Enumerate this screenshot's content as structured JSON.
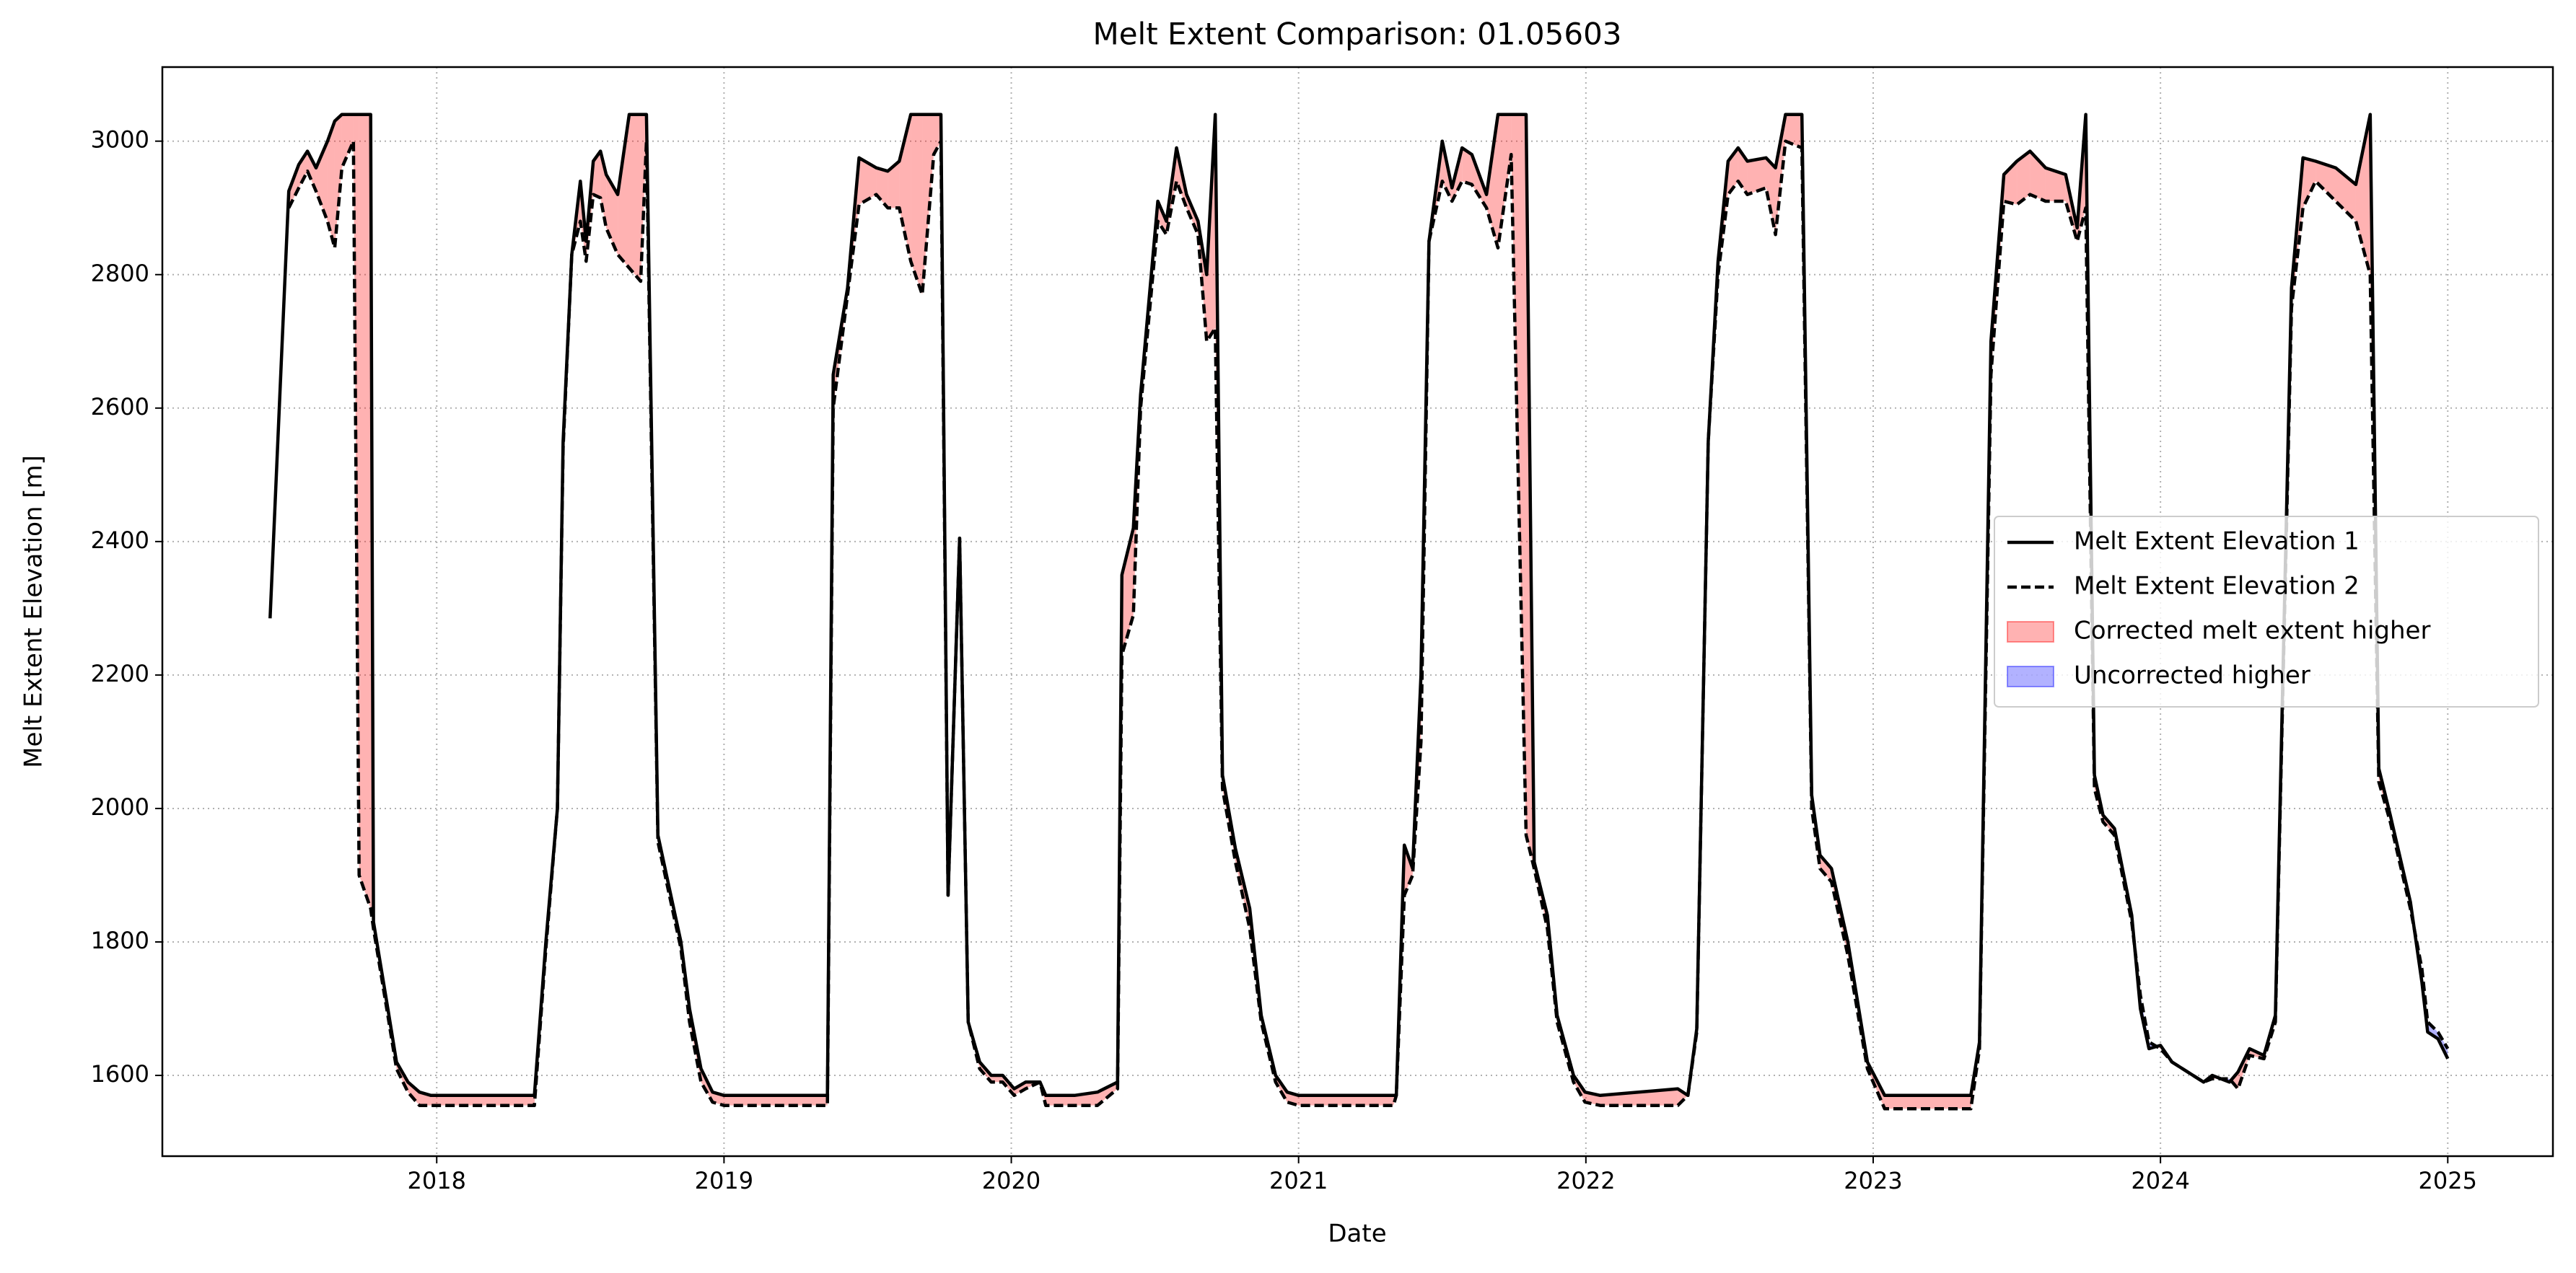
{
  "chart_data": {
    "type": "line",
    "title": "Melt Extent Comparison: 01.05603",
    "xlabel": "Date",
    "ylabel": "Melt Extent Elevation [m]",
    "x": [
      2017.42,
      2017.485,
      2017.52,
      2017.55,
      2017.58,
      2017.62,
      2017.645,
      2017.67,
      2017.71,
      2017.73,
      2017.77,
      2017.78,
      2017.83,
      2017.86,
      2017.9,
      2017.94,
      2017.98,
      2018.15,
      2018.34,
      2018.38,
      2018.42,
      2018.44,
      2018.47,
      2018.5,
      2018.52,
      2018.545,
      2018.57,
      2018.59,
      2018.63,
      2018.67,
      2018.71,
      2018.73,
      2018.77,
      2018.81,
      2018.85,
      2018.88,
      2018.92,
      2018.96,
      2019.0,
      2019.36,
      2019.38,
      2019.43,
      2019.47,
      2019.53,
      2019.57,
      2019.61,
      2019.65,
      2019.69,
      2019.73,
      2019.755,
      2019.78,
      2019.82,
      2019.85,
      2019.89,
      2019.93,
      2019.97,
      2020.01,
      2020.05,
      2020.1,
      2020.12,
      2020.22,
      2020.3,
      2020.37,
      2020.385,
      2020.425,
      2020.45,
      2020.51,
      2020.54,
      2020.575,
      2020.61,
      2020.65,
      2020.68,
      2020.71,
      2020.735,
      2020.78,
      2020.83,
      2020.87,
      2020.92,
      2020.96,
      2021.0,
      2021.33,
      2021.34,
      2021.368,
      2021.397,
      2021.426,
      2021.454,
      2021.5,
      2021.534,
      2021.569,
      2021.603,
      2021.654,
      2021.694,
      2021.74,
      2021.792,
      2021.82,
      2021.866,
      2021.9,
      2021.957,
      2021.997,
      2022.05,
      2022.32,
      2022.355,
      2022.386,
      2022.426,
      2022.46,
      2022.495,
      2022.53,
      2022.562,
      2022.627,
      2022.66,
      2022.695,
      2022.752,
      2022.786,
      2022.815,
      2022.855,
      2022.912,
      2022.98,
      2023.04,
      2023.34,
      2023.37,
      2023.41,
      2023.455,
      2023.5,
      2023.546,
      2023.6,
      2023.67,
      2023.71,
      2023.74,
      2023.77,
      2023.8,
      2023.84,
      2023.9,
      2023.93,
      2023.96,
      2024.0,
      2024.04,
      2024.15,
      2024.18,
      2024.24,
      2024.27,
      2024.31,
      2024.36,
      2024.4,
      2024.456,
      2024.496,
      2024.54,
      2024.61,
      2024.68,
      2024.73,
      2024.76,
      2024.8,
      2024.87,
      2024.91,
      2024.93,
      2024.966,
      2025.0
    ],
    "series": [
      {
        "name": "Melt Extent Elevation 1",
        "color": "#000000",
        "dash": false,
        "values": [
          2285,
          2925,
          2965,
          2985,
          2960,
          3000,
          3030,
          3040,
          3040,
          3040,
          3040,
          1830,
          1700,
          1620,
          1590,
          1575,
          1570,
          1570,
          1570,
          1800,
          2000,
          2550,
          2830,
          2940,
          2850,
          2970,
          2985,
          2950,
          2920,
          3040,
          3040,
          3040,
          1960,
          1880,
          1800,
          1700,
          1610,
          1575,
          1570,
          1570,
          2650,
          2780,
          2975,
          2960,
          2955,
          2970,
          3040,
          3040,
          3040,
          3040,
          1870,
          2405,
          1680,
          1620,
          1600,
          1600,
          1580,
          1590,
          1590,
          1570,
          1570,
          1575,
          1590,
          2350,
          2420,
          2620,
          2910,
          2880,
          2990,
          2920,
          2880,
          2800,
          3040,
          2050,
          1940,
          1850,
          1690,
          1600,
          1575,
          1570,
          1570,
          1570,
          1945,
          1910,
          2200,
          2850,
          3000,
          2930,
          2990,
          2980,
          2920,
          3040,
          3040,
          3040,
          1920,
          1840,
          1690,
          1600,
          1575,
          1570,
          1580,
          1570,
          1670,
          2550,
          2820,
          2970,
          2990,
          2970,
          2975,
          2960,
          3040,
          3040,
          2020,
          1930,
          1910,
          1800,
          1620,
          1570,
          1570,
          1650,
          2700,
          2950,
          2970,
          2985,
          2960,
          2950,
          2870,
          3040,
          2050,
          1990,
          1970,
          1840,
          1700,
          1640,
          1645,
          1620,
          1590,
          1600,
          1590,
          1605,
          1640,
          1630,
          1690,
          2780,
          2975,
          2970,
          2960,
          2935,
          3040,
          2060,
          1990,
          1860,
          1740,
          1665,
          1655,
          1625
        ]
      },
      {
        "name": "Melt Extent Elevation 2",
        "color": "#000000",
        "dash": true,
        "values": [
          null,
          2900,
          2930,
          2955,
          2925,
          2880,
          2840,
          2960,
          3000,
          1900,
          1850,
          1820,
          1690,
          1610,
          1575,
          1555,
          1555,
          1555,
          1555,
          1790,
          2000,
          2540,
          2830,
          2880,
          2820,
          2920,
          2915,
          2870,
          2830,
          2810,
          2790,
          3000,
          1950,
          1870,
          1790,
          1680,
          1590,
          1560,
          1555,
          1555,
          2600,
          2770,
          2905,
          2920,
          2900,
          2900,
          2820,
          2770,
          2980,
          3000,
          1870,
          2405,
          1680,
          1610,
          1590,
          1590,
          1570,
          1580,
          1590,
          1555,
          1555,
          1555,
          1580,
          2230,
          2290,
          2600,
          2880,
          2860,
          2940,
          2900,
          2860,
          2700,
          2720,
          2030,
          1920,
          1820,
          1680,
          1590,
          1560,
          1555,
          1555,
          1570,
          1870,
          1900,
          2100,
          2850,
          2940,
          2910,
          2940,
          2935,
          2900,
          2840,
          2980,
          1960,
          1910,
          1820,
          1680,
          1590,
          1560,
          1555,
          1555,
          1570,
          1665,
          2550,
          2800,
          2920,
          2940,
          2920,
          2930,
          2860,
          3000,
          2990,
          2000,
          1910,
          1890,
          1780,
          1610,
          1550,
          1550,
          1640,
          2650,
          2910,
          2905,
          2920,
          2910,
          2910,
          2850,
          2900,
          2030,
          1980,
          1960,
          1830,
          1720,
          1650,
          1640,
          1620,
          1590,
          1595,
          1595,
          1580,
          1630,
          1625,
          1680,
          2750,
          2900,
          2940,
          2910,
          2880,
          2800,
          2040,
          1980,
          1850,
          1760,
          1680,
          1665,
          1640
        ]
      }
    ],
    "fills": [
      {
        "name": "Corrected melt extent higher",
        "color": "#ff0000",
        "alpha": 0.3
      },
      {
        "name": "Uncorrected higher",
        "color": "#0000ff",
        "alpha": 0.3
      }
    ],
    "xlim": [
      2017.045,
      2025.366
    ],
    "xticks": [
      2018,
      2019,
      2020,
      2021,
      2022,
      2023,
      2024,
      2025
    ],
    "ylim": [
      1479,
      3111
    ],
    "yticks": [
      1600,
      1800,
      2000,
      2200,
      2400,
      2600,
      2800,
      3000
    ],
    "grid": true,
    "legend": "center right"
  }
}
